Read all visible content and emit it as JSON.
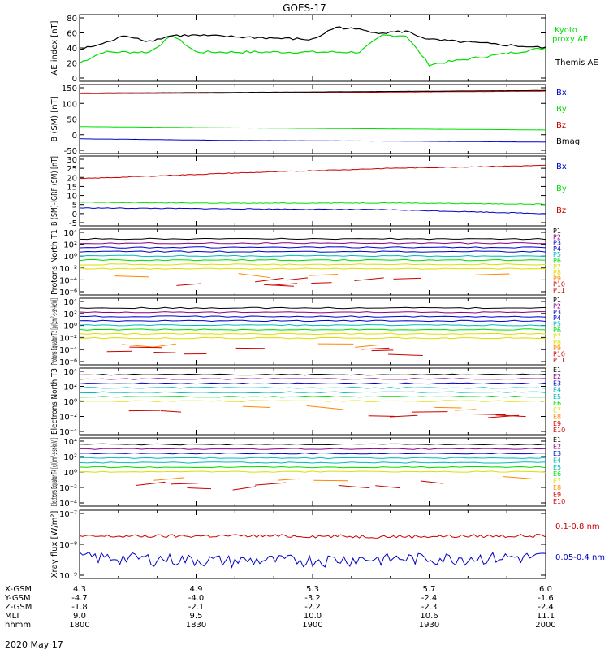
{
  "title": "GOES-17",
  "date_label": "2020 May 17",
  "colors": {
    "black": "#000000",
    "green": "#00dd00",
    "blue": "#0000cc",
    "red": "#cc0000",
    "purple": "#880088",
    "cyan": "#00bbbb",
    "yellow": "#dddd00",
    "orange": "#ff8800"
  },
  "x_axis": {
    "row_labels": [
      "X-GSM",
      "Y-GSM",
      "Z-GSM",
      "MLT",
      "hhmm"
    ],
    "rows": [
      [
        "4.3",
        "4.9",
        "5.3",
        "5.7",
        "6.0"
      ],
      [
        "-4.7",
        "-4.0",
        "-3.2",
        "-2.4",
        "-1.6"
      ],
      [
        "-1.8",
        "-2.1",
        "-2.2",
        "-2.3",
        "-2.4"
      ],
      [
        "9.0",
        "9.5",
        "10.0",
        "10.6",
        "11.1"
      ],
      [
        "1800",
        "1830",
        "1900",
        "1930",
        "2000"
      ]
    ]
  },
  "chart_data": [
    {
      "type": "line",
      "ylabel": "AE index [nT]",
      "yticks": [
        "80",
        "60",
        "40",
        "20",
        "0"
      ],
      "ylim": [
        0,
        80
      ],
      "x": [
        1800,
        1810,
        1820,
        1830,
        1840,
        1850,
        1900,
        1910,
        1920,
        1930,
        1940,
        1950,
        2000
      ],
      "series": [
        {
          "name": "Kyoto proxy AE",
          "color": "green",
          "values": [
            22,
            35,
            35,
            35,
            55,
            35,
            35,
            35,
            35,
            55,
            55,
            20,
            40
          ]
        },
        {
          "name": "Themis AE",
          "color": "black",
          "values": [
            38,
            45,
            55,
            48,
            55,
            55,
            50,
            65,
            62,
            58,
            60,
            50,
            40
          ]
        }
      ],
      "legend": "right"
    },
    {
      "type": "line",
      "ylabel": "B (SM) [nT]",
      "yticks": [
        "150",
        "100",
        "50",
        "0",
        "-50"
      ],
      "ylim": [
        -60,
        150
      ],
      "series": [
        {
          "name": "Bx",
          "color": "blue",
          "values": [
            -15,
            -20,
            -22,
            -25
          ]
        },
        {
          "name": "By",
          "color": "green",
          "values": [
            22,
            18,
            15,
            12
          ]
        },
        {
          "name": "Bz",
          "color": "red",
          "values": [
            122,
            124,
            127,
            130
          ]
        },
        {
          "name": "Bmag",
          "color": "black",
          "values": [
            124,
            126,
            129,
            132
          ]
        }
      ],
      "legend": "right"
    },
    {
      "type": "line",
      "ylabel": "B (SM)-IGRF (SM) [nT]",
      "yticks": [
        "30",
        "25",
        "20",
        "15",
        "10",
        "5",
        "0",
        "-5"
      ],
      "ylim": [
        -7,
        30
      ],
      "series": [
        {
          "name": "Bx",
          "color": "blue",
          "values": [
            2.5,
            2,
            1.5,
            -0.5
          ]
        },
        {
          "name": "By",
          "color": "green",
          "values": [
            5.5,
            5,
            5.2,
            4.5
          ]
        },
        {
          "name": "Bz",
          "color": "red",
          "values": [
            18,
            21,
            23.5,
            25
          ]
        }
      ],
      "legend": "right"
    },
    {
      "type": "line",
      "ylabel": "Protons North T1",
      "yticks": [
        "10⁴",
        "10²",
        "10⁰",
        "10⁻²",
        "10⁻⁴",
        "10⁻⁶"
      ],
      "scale": "log",
      "series": [
        {
          "name": "P1",
          "color": "black"
        },
        {
          "name": "P2",
          "color": "purple"
        },
        {
          "name": "P3",
          "color": "blue"
        },
        {
          "name": "P4",
          "color": "blue"
        },
        {
          "name": "P5",
          "color": "cyan"
        },
        {
          "name": "P6",
          "color": "green"
        },
        {
          "name": "P7",
          "color": "yellow"
        },
        {
          "name": "P8",
          "color": "yellow"
        },
        {
          "name": "P9",
          "color": "orange"
        },
        {
          "name": "P10",
          "color": "red"
        },
        {
          "name": "P11",
          "color": "red"
        }
      ]
    },
    {
      "type": "line",
      "ylabel": "Protons Equator T2 [p/(cm²-s-sr-keV)]",
      "yticks": [
        "10⁴",
        "10²",
        "10⁰",
        "10⁻²",
        "10⁻⁴",
        "10⁻⁶"
      ],
      "scale": "log",
      "series": [
        {
          "name": "P1",
          "color": "black"
        },
        {
          "name": "P2",
          "color": "purple"
        },
        {
          "name": "P3",
          "color": "blue"
        },
        {
          "name": "P4",
          "color": "blue"
        },
        {
          "name": "P5",
          "color": "cyan"
        },
        {
          "name": "P6",
          "color": "green"
        },
        {
          "name": "P7",
          "color": "yellow"
        },
        {
          "name": "P8",
          "color": "yellow"
        },
        {
          "name": "P9",
          "color": "orange"
        },
        {
          "name": "P10",
          "color": "red"
        },
        {
          "name": "P11",
          "color": "red"
        }
      ]
    },
    {
      "type": "line",
      "ylabel": "Electrons North T3",
      "yticks": [
        "10⁴",
        "10²",
        "10⁰",
        "10⁻²",
        "10⁻⁴"
      ],
      "scale": "log",
      "series": [
        {
          "name": "E1",
          "color": "black"
        },
        {
          "name": "E2",
          "color": "purple"
        },
        {
          "name": "E3",
          "color": "blue"
        },
        {
          "name": "E4",
          "color": "cyan"
        },
        {
          "name": "E5",
          "color": "cyan"
        },
        {
          "name": "E6",
          "color": "green"
        },
        {
          "name": "E7",
          "color": "yellow"
        },
        {
          "name": "E8",
          "color": "orange"
        },
        {
          "name": "E9",
          "color": "red"
        },
        {
          "name": "E10",
          "color": "red"
        }
      ]
    },
    {
      "type": "line",
      "ylabel": "Electrons Equator T4 [e/(cm²-s-sr-keV)]",
      "yticks": [
        "10⁴",
        "10²",
        "10⁰",
        "10⁻²",
        "10⁻⁴"
      ],
      "scale": "log",
      "series": [
        {
          "name": "E1",
          "color": "black"
        },
        {
          "name": "E2",
          "color": "purple"
        },
        {
          "name": "E3",
          "color": "blue"
        },
        {
          "name": "E4",
          "color": "cyan"
        },
        {
          "name": "E5",
          "color": "cyan"
        },
        {
          "name": "E6",
          "color": "green"
        },
        {
          "name": "E7",
          "color": "yellow"
        },
        {
          "name": "E8",
          "color": "orange"
        },
        {
          "name": "E9",
          "color": "red"
        },
        {
          "name": "E10",
          "color": "red"
        }
      ]
    },
    {
      "type": "line",
      "ylabel": "Xray flux [W/m²]",
      "yticks": [
        "10⁻⁷",
        "10⁻⁸",
        "10⁻⁹"
      ],
      "scale": "log",
      "series": [
        {
          "name": "0.1-0.8 nm",
          "color": "red",
          "values": [
            1.8e-08,
            1.9e-08,
            1.8e-08,
            1.9e-08
          ]
        },
        {
          "name": "0.05-0.4 nm",
          "color": "blue",
          "values": [
            4e-09,
            3e-09,
            3.5e-09,
            4e-09
          ]
        }
      ],
      "legend": "right"
    }
  ]
}
